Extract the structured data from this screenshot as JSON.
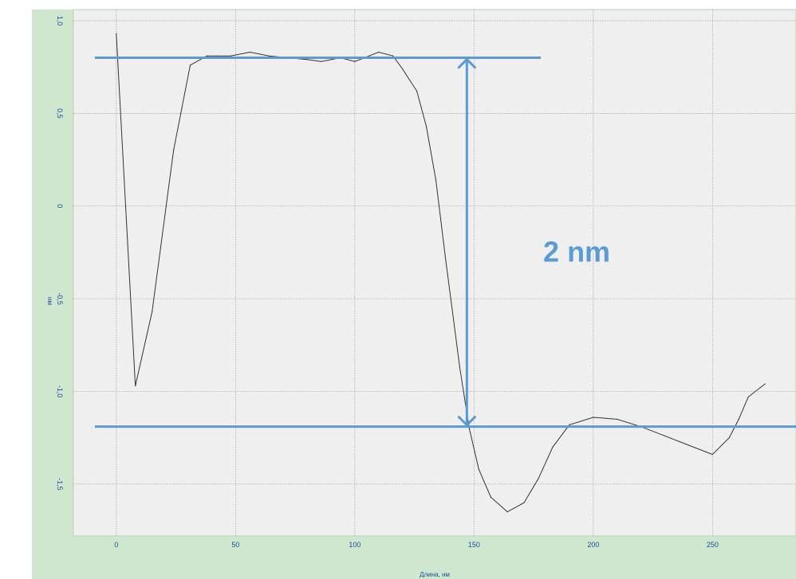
{
  "chart_data": {
    "type": "line",
    "xlabel": "Длина, нм",
    "ylabel": "нм",
    "xlim": [
      -18,
      285
    ],
    "ylim": [
      -1.78,
      1.06
    ],
    "x_ticks": [
      0,
      50,
      100,
      150,
      200,
      250
    ],
    "x_tick_labels": [
      "0",
      "50",
      "100",
      "150",
      "200",
      "250"
    ],
    "y_ticks": [
      1.0,
      0.5,
      0,
      -0.5,
      -1.0,
      -1.5
    ],
    "y_tick_labels": [
      "1,0",
      "0,5",
      "0",
      "-0,5",
      "-1,0",
      "-1,5"
    ],
    "grid": true,
    "series": [
      {
        "color": "#333333",
        "x": [
          0,
          8,
          15,
          24,
          31,
          38,
          42,
          48,
          56,
          64,
          72,
          80,
          86,
          94,
          100,
          106,
          110,
          116,
          120,
          126,
          130,
          134,
          138,
          144,
          148,
          152,
          157,
          164,
          171,
          177,
          183,
          190,
          200,
          210,
          220,
          230,
          240,
          250,
          257,
          261,
          265,
          272
        ],
        "y": [
          0.93,
          -0.97,
          -0.57,
          0.3,
          0.76,
          0.81,
          0.81,
          0.81,
          0.83,
          0.81,
          0.8,
          0.79,
          0.78,
          0.8,
          0.78,
          0.81,
          0.83,
          0.81,
          0.74,
          0.62,
          0.43,
          0.14,
          -0.28,
          -0.87,
          -1.2,
          -1.42,
          -1.57,
          -1.65,
          -1.6,
          -1.47,
          -1.3,
          -1.18,
          -1.14,
          -1.15,
          -1.19,
          -1.24,
          -1.29,
          -1.34,
          -1.25,
          -1.15,
          -1.03,
          -0.96
        ]
      }
    ],
    "annotations": {
      "upper_line": {
        "y": 0.8,
        "x_range": [
          -9,
          178
        ],
        "color": "#5b9bd5"
      },
      "lower_line": {
        "y": -1.19,
        "x_range": [
          -9,
          285
        ],
        "color": "#5b9bd5"
      },
      "arrow": {
        "x": 147,
        "y_from": 0.8,
        "y_to": -1.19,
        "color": "#5b9bd5"
      },
      "label": {
        "text": "2 nm",
        "x": 179,
        "y": -0.3,
        "color": "#5b9bd5"
      }
    }
  },
  "colors": {
    "plot_background": "#efefef",
    "axis_background": "#cfe6cf",
    "grid": "#9e9e9e",
    "tick_text": "#1a4f9c",
    "accent": "#5b9bd5"
  }
}
